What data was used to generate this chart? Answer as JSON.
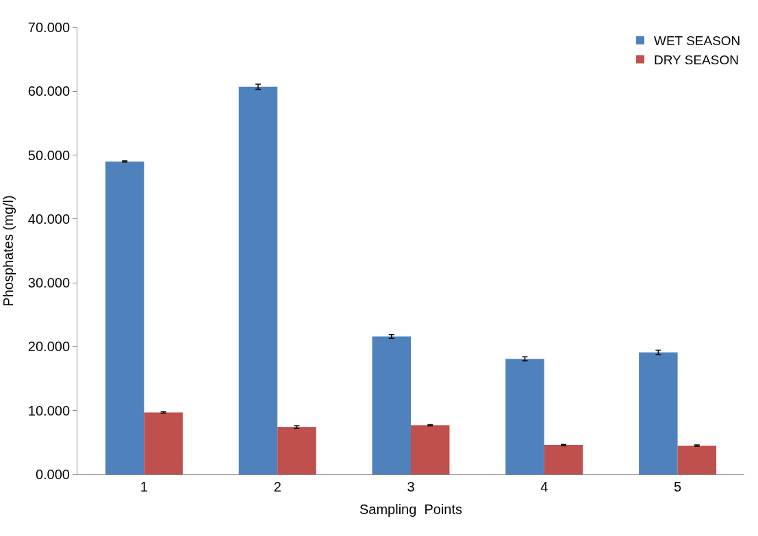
{
  "chart_data": {
    "type": "bar",
    "xlabel": "Sampling  Points",
    "ylabel": "Phosphates (mg/l)",
    "categories": [
      "1",
      "2",
      "3",
      "4",
      "5"
    ],
    "series": [
      {
        "name": "WET SEASON",
        "color": "#4f81bd",
        "values": [
          49.0,
          60.7,
          21.6,
          18.1,
          19.1
        ],
        "errors": [
          0.1,
          0.4,
          0.3,
          0.3,
          0.35
        ]
      },
      {
        "name": "DRY SEASON",
        "color": "#c0504d",
        "values": [
          9.7,
          7.4,
          7.7,
          4.6,
          4.5
        ],
        "errors": [
          0.1,
          0.2,
          0.1,
          0.1,
          0.1
        ]
      }
    ],
    "ylim": [
      0,
      70
    ],
    "yticks": [
      {
        "value": 0,
        "label": "0.000"
      },
      {
        "value": 10,
        "label": "10.000"
      },
      {
        "value": 20,
        "label": "20.000"
      },
      {
        "value": 30,
        "label": "30.000"
      },
      {
        "value": 40,
        "label": "40.000"
      },
      {
        "value": 50,
        "label": "50.000"
      },
      {
        "value": 60,
        "label": "60.000"
      },
      {
        "value": 70,
        "label": "70.000"
      }
    ],
    "grid": false,
    "legend": "top right"
  }
}
